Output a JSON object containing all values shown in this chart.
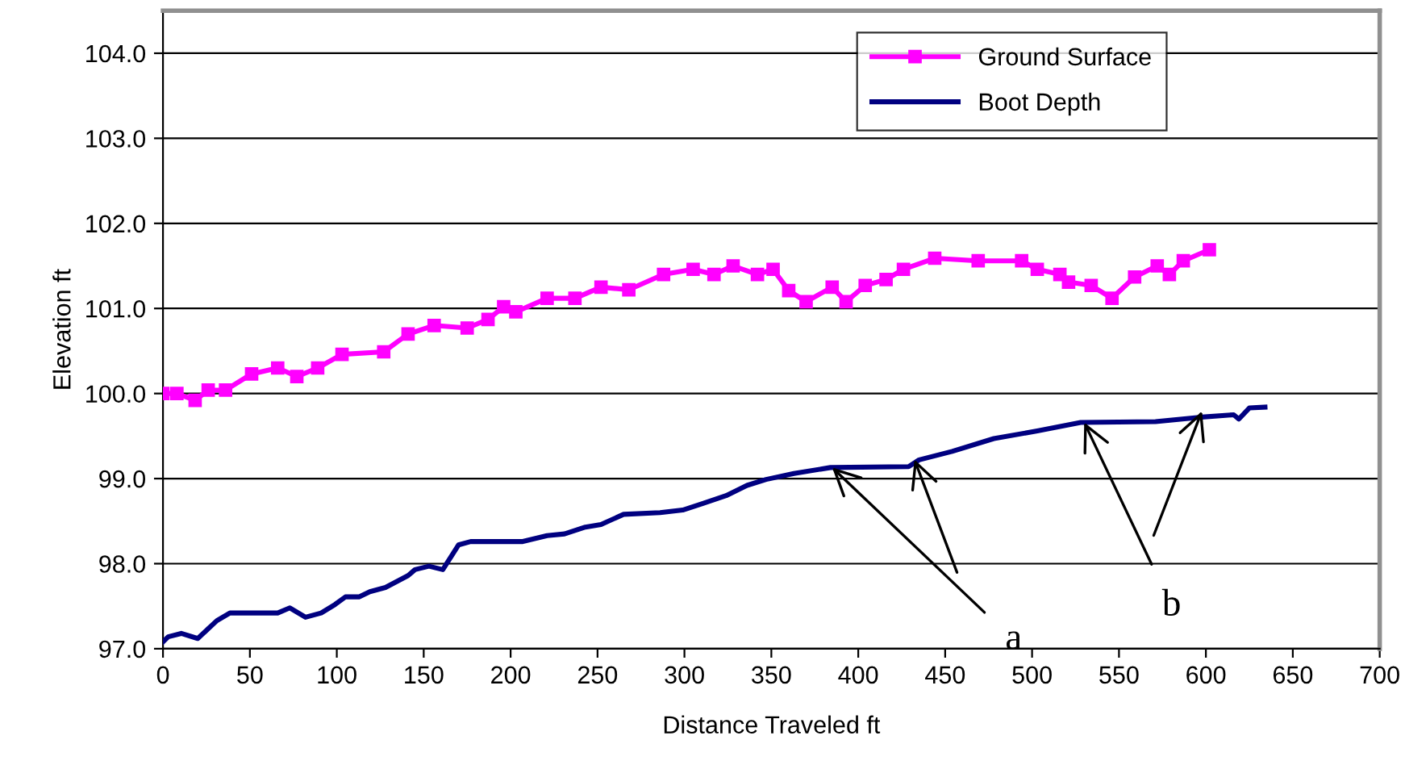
{
  "chart_data": {
    "type": "line",
    "xlabel": "Distance Traveled ft",
    "ylabel": "Elevation ft",
    "xlim": [
      0,
      700
    ],
    "xticks": [
      0,
      50,
      100,
      150,
      200,
      250,
      300,
      350,
      400,
      450,
      500,
      550,
      600,
      650,
      700
    ],
    "ylim": [
      97,
      104.5
    ],
    "yticks": [
      {
        "value": 97,
        "label": "97.0"
      },
      {
        "value": 98,
        "label": "98.0"
      },
      {
        "value": 99,
        "label": "99.0"
      },
      {
        "value": 100,
        "label": "100.0"
      },
      {
        "value": 101,
        "label": "101.0"
      },
      {
        "value": 102,
        "label": "102.0"
      },
      {
        "value": 103,
        "label": "103.0"
      },
      {
        "value": 104,
        "label": "104.0"
      }
    ],
    "grid": "y",
    "legend": "top right",
    "series": [
      {
        "name": "Ground Surface",
        "color": "#ff00ff",
        "marker": "square",
        "x": [
          0,
          8,
          18.5,
          26,
          36,
          51,
          66,
          77,
          89,
          103,
          127,
          141,
          156,
          175,
          187,
          196,
          203,
          221,
          237,
          252,
          268,
          288,
          305,
          317,
          328,
          342,
          351,
          360,
          370,
          385,
          393,
          404,
          416,
          426,
          444,
          469,
          494,
          503,
          516,
          521,
          534,
          546,
          559,
          572,
          579,
          587,
          602
        ],
        "values": [
          100.0,
          100.0,
          99.92,
          100.04,
          100.04,
          100.23,
          100.3,
          100.2,
          100.3,
          100.46,
          100.49,
          100.7,
          100.8,
          100.77,
          100.87,
          101.02,
          100.96,
          101.12,
          101.12,
          101.25,
          101.22,
          101.4,
          101.46,
          101.4,
          101.5,
          101.4,
          101.46,
          101.21,
          101.08,
          101.25,
          101.08,
          101.27,
          101.34,
          101.46,
          101.59,
          101.56,
          101.56,
          101.46,
          101.4,
          101.31,
          101.27,
          101.12,
          101.37,
          101.5,
          101.4,
          101.56,
          101.69
        ]
      },
      {
        "name": "Boot Depth",
        "color": "#000080",
        "marker": "none",
        "x": [
          0,
          3,
          10.5,
          20,
          31,
          38.5,
          66,
          73,
          82,
          91,
          99,
          105,
          113,
          119,
          128,
          141,
          145,
          153,
          161,
          170,
          177,
          207,
          221,
          231,
          243,
          252,
          265,
          286,
          299,
          311,
          324,
          336,
          347,
          363,
          384,
          429,
          435,
          454,
          478,
          503,
          528,
          571,
          596,
          616,
          619,
          625,
          634
        ],
        "values": [
          97.08,
          97.14,
          97.18,
          97.12,
          97.33,
          97.42,
          97.42,
          97.48,
          97.37,
          97.42,
          97.52,
          97.61,
          97.61,
          97.67,
          97.72,
          97.86,
          97.93,
          97.97,
          97.93,
          98.22,
          98.26,
          98.26,
          98.33,
          98.35,
          98.43,
          98.46,
          98.58,
          98.6,
          98.63,
          98.71,
          98.8,
          98.92,
          98.99,
          99.06,
          99.13,
          99.14,
          99.22,
          99.32,
          99.47,
          99.56,
          99.66,
          99.67,
          99.72,
          99.75,
          99.7,
          99.83,
          99.84
        ]
      }
    ],
    "annotations": [
      {
        "text": "a",
        "x": 385,
        "y": 99.13
      },
      {
        "text": "b",
        "x": 530,
        "y": 99.66
      }
    ]
  }
}
